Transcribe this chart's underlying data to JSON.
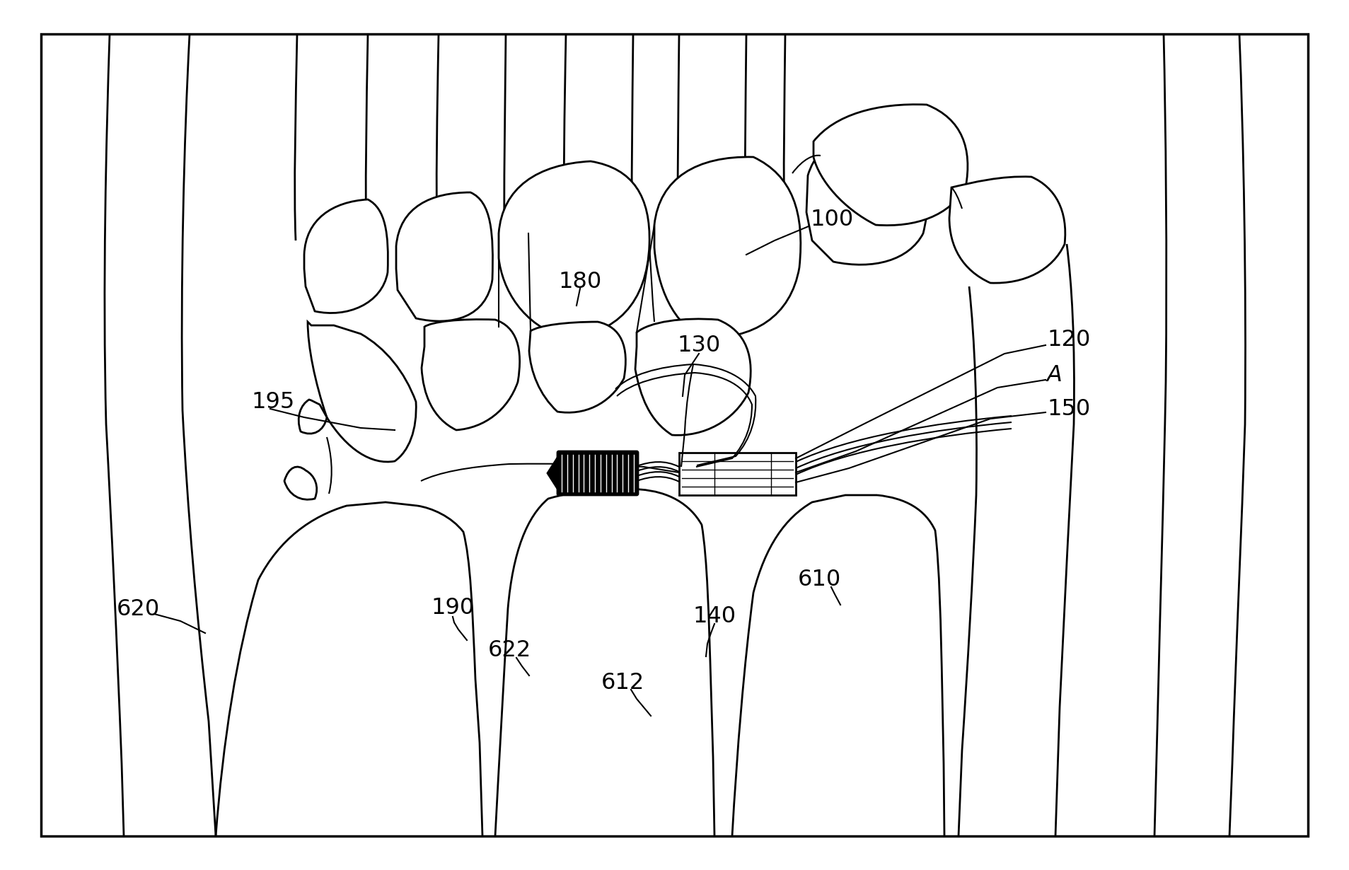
{
  "background_color": "#ffffff",
  "line_color": "#000000",
  "figure_width": 19.07,
  "figure_height": 12.3,
  "dpi": 100
}
